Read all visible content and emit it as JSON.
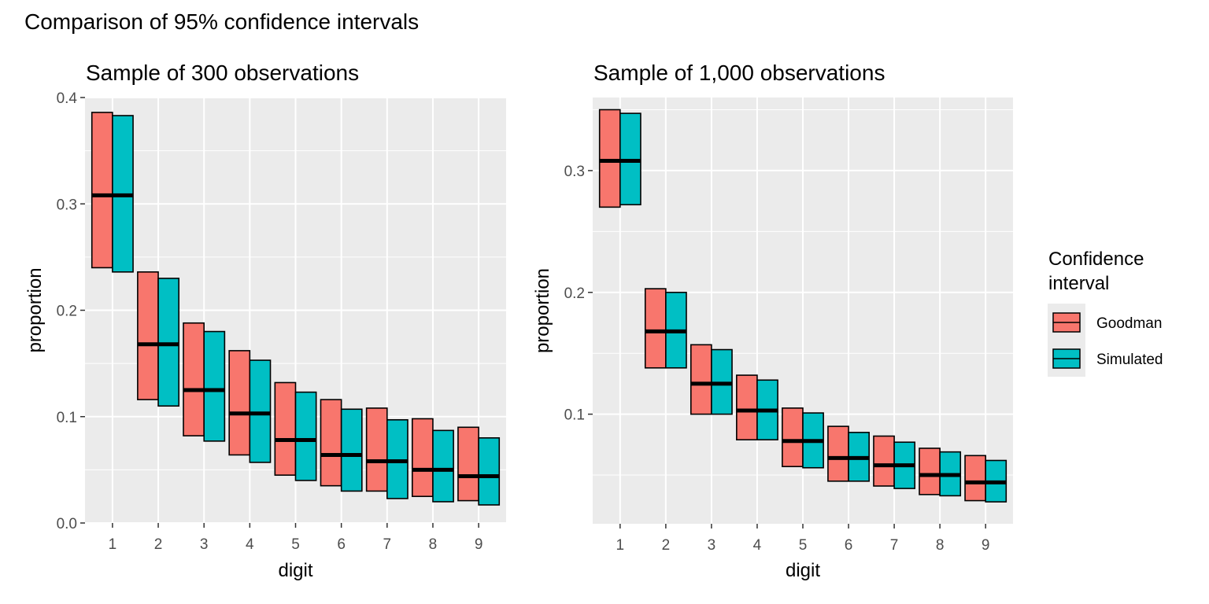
{
  "figure": {
    "title": "Comparison of 95% confidence intervals"
  },
  "legend": {
    "title_line1": "Confidence",
    "title_line2": "interval",
    "placement": "right",
    "items": [
      {
        "label": "Goodman",
        "color": "#F8766D"
      },
      {
        "label": "Simulated",
        "color": "#00BFC4"
      }
    ]
  },
  "colors": {
    "panel_bg": "#EBEBEB",
    "grid": "#FFFFFF",
    "goodman": "#F8766D",
    "simulated": "#00BFC4",
    "estimate": "#000000"
  },
  "chart_data": [
    {
      "type": "bar",
      "title": "Sample of 300 observations",
      "xlabel": "digit",
      "ylabel": "proportion",
      "ylim": [
        0.0,
        0.4
      ],
      "yticks": [
        0.0,
        0.1,
        0.2,
        0.3,
        0.4
      ],
      "ytick_labels": [
        "0.0",
        "0.1",
        "0.2",
        "0.3",
        "0.4"
      ],
      "categories": [
        "1",
        "2",
        "3",
        "4",
        "5",
        "6",
        "7",
        "8",
        "9"
      ],
      "grid": true,
      "estimate": [
        0.308,
        0.168,
        0.125,
        0.103,
        0.078,
        0.064,
        0.058,
        0.05,
        0.044
      ],
      "series": [
        {
          "name": "Goodman",
          "lower": [
            0.24,
            0.116,
            0.082,
            0.064,
            0.045,
            0.035,
            0.03,
            0.025,
            0.021
          ],
          "upper": [
            0.386,
            0.236,
            0.188,
            0.162,
            0.132,
            0.116,
            0.108,
            0.098,
            0.09
          ]
        },
        {
          "name": "Simulated",
          "lower": [
            0.236,
            0.11,
            0.077,
            0.057,
            0.04,
            0.03,
            0.023,
            0.02,
            0.017
          ],
          "upper": [
            0.383,
            0.23,
            0.18,
            0.153,
            0.123,
            0.107,
            0.097,
            0.087,
            0.08
          ]
        }
      ]
    },
    {
      "type": "bar",
      "title": "Sample of 1,000 observations",
      "xlabel": "digit",
      "ylabel": "proportion",
      "ylim": [
        0.01,
        0.36
      ],
      "yticks": [
        0.1,
        0.2,
        0.3
      ],
      "ytick_labels": [
        "0.1",
        "0.2",
        "0.3"
      ],
      "categories": [
        "1",
        "2",
        "3",
        "4",
        "5",
        "6",
        "7",
        "8",
        "9"
      ],
      "grid": true,
      "estimate": [
        0.308,
        0.168,
        0.125,
        0.103,
        0.078,
        0.064,
        0.058,
        0.05,
        0.044
      ],
      "series": [
        {
          "name": "Goodman",
          "lower": [
            0.27,
            0.138,
            0.1,
            0.079,
            0.057,
            0.045,
            0.041,
            0.034,
            0.029
          ],
          "upper": [
            0.35,
            0.203,
            0.157,
            0.132,
            0.105,
            0.09,
            0.082,
            0.072,
            0.066
          ]
        },
        {
          "name": "Simulated",
          "lower": [
            0.272,
            0.138,
            0.1,
            0.079,
            0.056,
            0.045,
            0.039,
            0.033,
            0.028
          ],
          "upper": [
            0.347,
            0.2,
            0.153,
            0.128,
            0.101,
            0.085,
            0.077,
            0.069,
            0.062
          ]
        }
      ]
    }
  ]
}
